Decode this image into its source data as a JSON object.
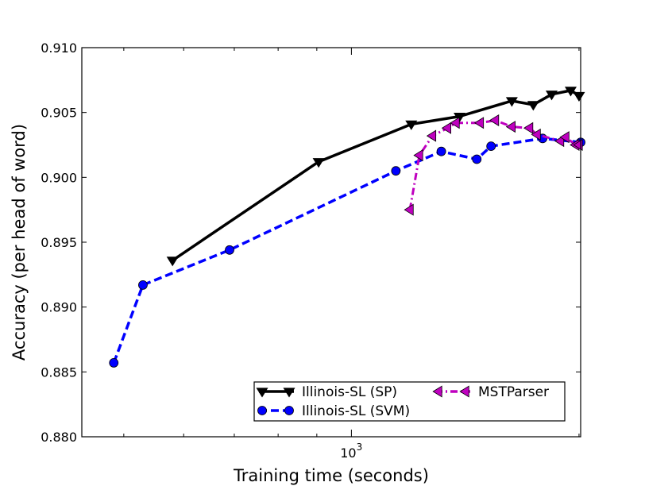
{
  "chart_data": {
    "type": "line",
    "title": "",
    "xlabel": "Training time (seconds)",
    "ylabel": "Accuracy (per head of word)",
    "xscale": "log",
    "xlim": [
      440,
      2010
    ],
    "ylim": [
      0.88,
      0.91
    ],
    "x_ticks": [
      {
        "value": 1000,
        "label": "10",
        "exp": "3"
      }
    ],
    "y_ticks": [
      {
        "value": 0.88,
        "label": "0.880"
      },
      {
        "value": 0.885,
        "label": "0.885"
      },
      {
        "value": 0.89,
        "label": "0.890"
      },
      {
        "value": 0.895,
        "label": "0.895"
      },
      {
        "value": 0.9,
        "label": "0.900"
      },
      {
        "value": 0.905,
        "label": "0.905"
      },
      {
        "value": 0.91,
        "label": "0.910"
      }
    ],
    "grid": false,
    "legend_position": "lower-right",
    "series": [
      {
        "name": "Illinois-SL (SP)",
        "color": "#000000",
        "linestyle": "solid",
        "marker": "triangle-down",
        "points": [
          [
            580,
            0.8936
          ],
          [
            905,
            0.9012
          ],
          [
            1200,
            0.9041
          ],
          [
            1390,
            0.9047
          ],
          [
            1630,
            0.9059
          ],
          [
            1740,
            0.9056
          ],
          [
            1840,
            0.9064
          ],
          [
            1950,
            0.9067
          ],
          [
            2000,
            0.9063
          ]
        ]
      },
      {
        "name": "Illinois-SL (SVM)",
        "color": "#0000ff",
        "linestyle": "dashed",
        "marker": "circle",
        "points": [
          [
            485,
            0.8857
          ],
          [
            530,
            0.8917
          ],
          [
            690,
            0.8944
          ],
          [
            1145,
            0.9005
          ],
          [
            1315,
            0.902
          ],
          [
            1465,
            0.9014
          ],
          [
            1530,
            0.9024
          ],
          [
            1790,
            0.903
          ],
          [
            2010,
            0.9027
          ]
        ]
      },
      {
        "name": "MSTParser",
        "color": "#bf00bf",
        "linestyle": "dashdot",
        "marker": "triangle-left",
        "points": [
          [
            1195,
            0.8975
          ],
          [
            1230,
            0.9017
          ],
          [
            1280,
            0.9032
          ],
          [
            1340,
            0.9038
          ],
          [
            1375,
            0.9042
          ],
          [
            1480,
            0.9042
          ],
          [
            1550,
            0.9044
          ],
          [
            1630,
            0.9039
          ],
          [
            1720,
            0.9038
          ],
          [
            1760,
            0.9033
          ],
          [
            1890,
            0.9028
          ],
          [
            1920,
            0.9031
          ],
          [
            1980,
            0.9025
          ],
          [
            2000,
            0.9025
          ]
        ]
      }
    ]
  }
}
